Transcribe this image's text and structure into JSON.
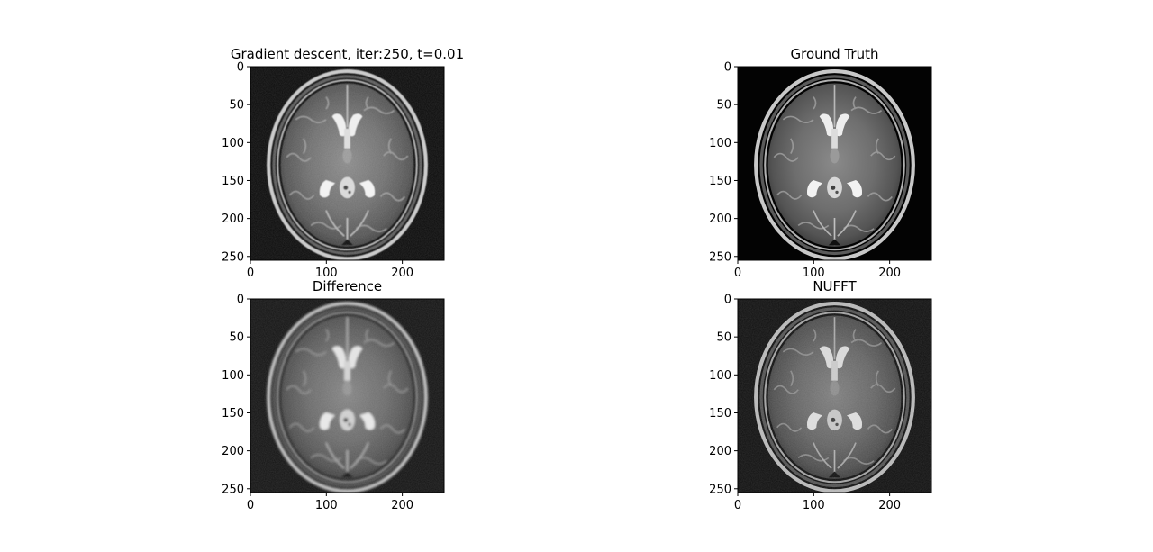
{
  "figure": {
    "background": "#ffffff",
    "axis_color": "#000000"
  },
  "chart_data": [
    {
      "type": "heatmap",
      "title": "Gradient descent, iter:250, t=0.01",
      "image": "brain-mri-axial-slice-reconstruction",
      "xlim": [
        0,
        255
      ],
      "ylim": [
        255,
        0
      ],
      "x_ticks": [
        0,
        100,
        200
      ],
      "y_ticks": [
        0,
        50,
        100,
        150,
        200,
        250
      ],
      "colormap": "gray",
      "background_level": "#0b0b0b"
    },
    {
      "type": "heatmap",
      "title": "Ground Truth",
      "image": "brain-mri-axial-slice-ground-truth",
      "xlim": [
        0,
        255
      ],
      "ylim": [
        255,
        0
      ],
      "x_ticks": [
        0,
        100,
        200
      ],
      "y_ticks": [
        0,
        50,
        100,
        150,
        200,
        250
      ],
      "colormap": "gray",
      "background_level": "#030303"
    },
    {
      "type": "heatmap",
      "title": "Difference",
      "image": "brain-mri-axial-slice-difference",
      "xlim": [
        0,
        255
      ],
      "ylim": [
        255,
        0
      ],
      "x_ticks": [
        0,
        100,
        200
      ],
      "y_ticks": [
        0,
        50,
        100,
        150,
        200,
        250
      ],
      "colormap": "gray",
      "background_level": "#141414"
    },
    {
      "type": "heatmap",
      "title": "NUFFT",
      "image": "brain-mri-axial-slice-nufft",
      "xlim": [
        0,
        255
      ],
      "ylim": [
        255,
        0
      ],
      "x_ticks": [
        0,
        100,
        200
      ],
      "y_ticks": [
        0,
        50,
        100,
        150,
        200,
        250
      ],
      "colormap": "gray",
      "background_level": "#101010"
    }
  ]
}
